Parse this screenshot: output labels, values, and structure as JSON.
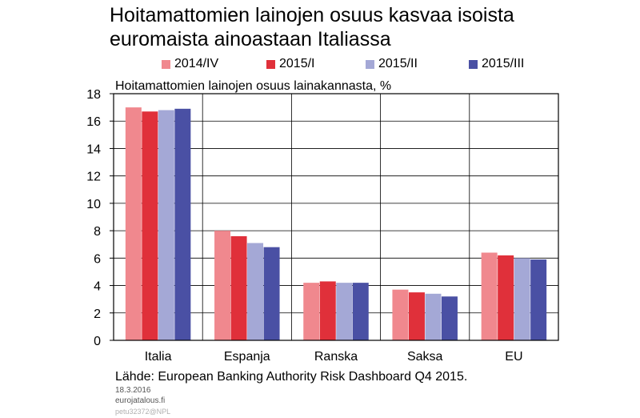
{
  "title_line1": "Hoitamattomien lainojen osuus kasvaa isoista",
  "title_line2": "euromaista ainoastaan Italiassa",
  "source": "Lähde: European Banking Authority Risk Dashboard Q4 2015.",
  "footer": {
    "date": "18.3.2016",
    "site": "eurojatalous.fi",
    "code": "petu32372@NPL"
  },
  "chart_data": {
    "type": "bar",
    "title": "Hoitamattomien lainojen osuus kasvaa isoista euromaista ainoastaan Italiassa",
    "ylabel": "Hoitamattomien lainojen osuus lainakannasta, %",
    "xlabel": "",
    "ylim": [
      0,
      18
    ],
    "yticks": [
      0,
      2,
      4,
      6,
      8,
      10,
      12,
      14,
      16,
      18
    ],
    "grid": true,
    "legend_position": "top",
    "categories": [
      "Italia",
      "Espanja",
      "Ranska",
      "Saksa",
      "EU"
    ],
    "series": [
      {
        "name": "2014/IV",
        "color": "#f0888e",
        "values": [
          17.0,
          8.0,
          4.2,
          3.7,
          6.4
        ]
      },
      {
        "name": "2015/I",
        "color": "#e0303a",
        "values": [
          16.7,
          7.6,
          4.3,
          3.5,
          6.2
        ]
      },
      {
        "name": "2015/II",
        "color": "#a4a8d6",
        "values": [
          16.8,
          7.1,
          4.2,
          3.4,
          6.0
        ]
      },
      {
        "name": "2015/III",
        "color": "#4a50a4",
        "values": [
          16.9,
          6.8,
          4.2,
          3.2,
          5.9
        ]
      }
    ]
  }
}
